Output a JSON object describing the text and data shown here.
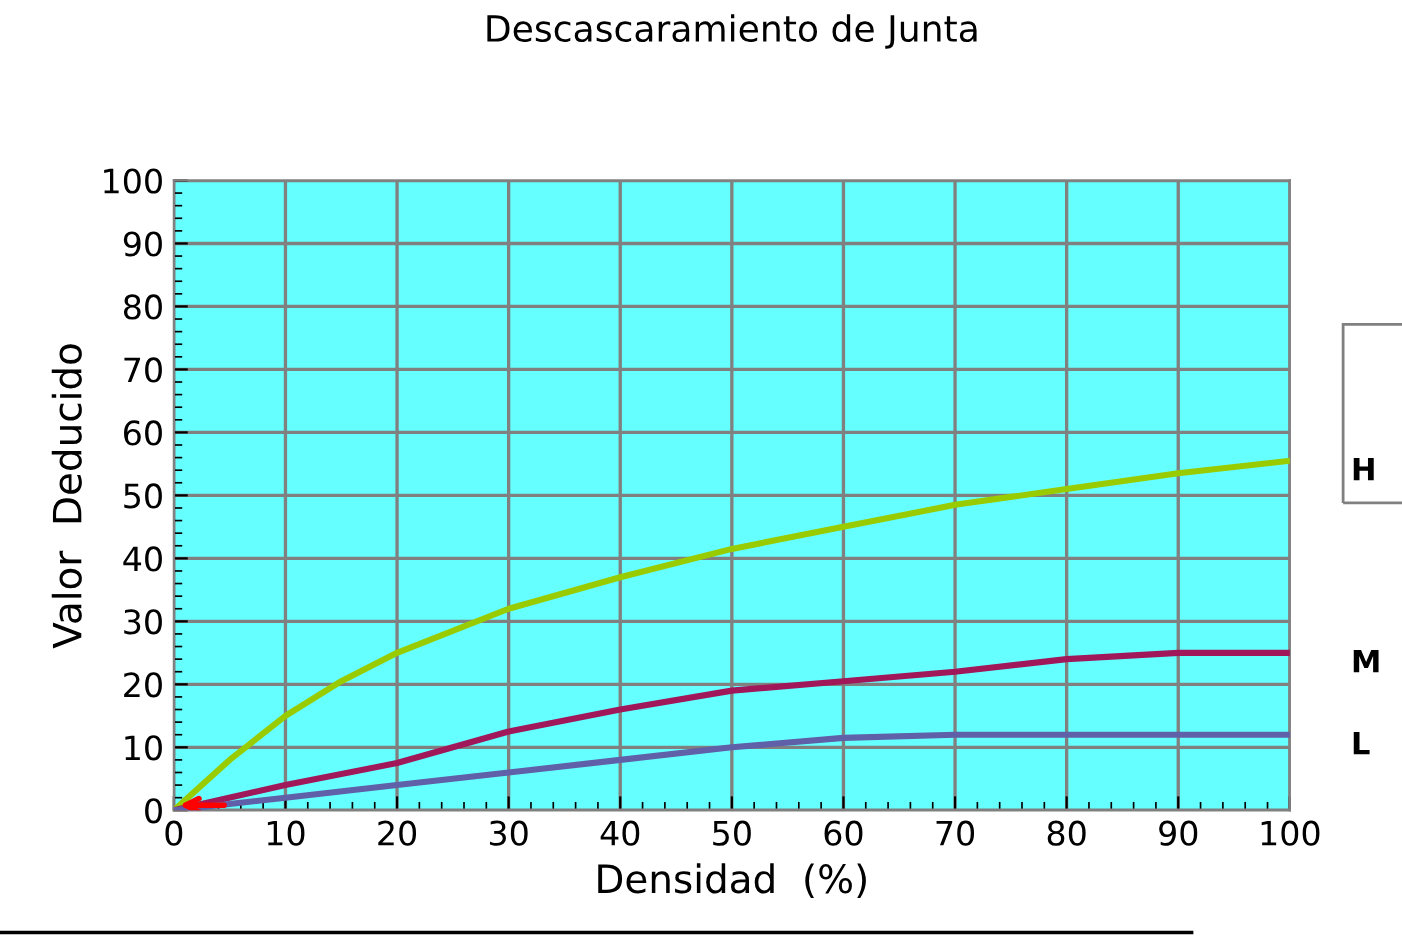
{
  "chart_data": {
    "type": "line",
    "title": "Descascaramiento de Junta",
    "xlabel": "Densidad  (%)",
    "ylabel": "Valor  Deducido",
    "series": [
      {
        "name": "H",
        "color": "#99cc00",
        "x": [
          0,
          5,
          10,
          15,
          20,
          30,
          40,
          50,
          60,
          70,
          80,
          90,
          100
        ],
        "values": [
          0,
          8,
          15,
          20.5,
          25,
          32,
          37,
          41.5,
          45,
          48.5,
          51,
          53.5,
          55.5
        ]
      },
      {
        "name": "M",
        "color": "#a0185a",
        "x": [
          0,
          10,
          20,
          25,
          30,
          40,
          50,
          60,
          70,
          80,
          90,
          100
        ],
        "values": [
          0,
          4,
          7.5,
          10,
          12.5,
          16,
          19,
          20.5,
          22,
          24,
          25,
          25
        ]
      },
      {
        "name": "L",
        "color": "#6060a8",
        "x": [
          0,
          10,
          20,
          30,
          40,
          50,
          60,
          70,
          100
        ],
        "values": [
          0,
          2,
          4,
          6,
          8,
          10,
          11.5,
          12,
          12
        ]
      }
    ],
    "xlim": [
      0,
      100
    ],
    "xticks": [
      0,
      10,
      20,
      30,
      40,
      50,
      60,
      70,
      80,
      90,
      100
    ],
    "ylim": [
      0,
      100
    ],
    "yticks": [
      0,
      10,
      20,
      30,
      40,
      50,
      60,
      70,
      80,
      90,
      100
    ],
    "grid": true,
    "legend": false,
    "marker": "none",
    "line_style": "solid"
  }
}
